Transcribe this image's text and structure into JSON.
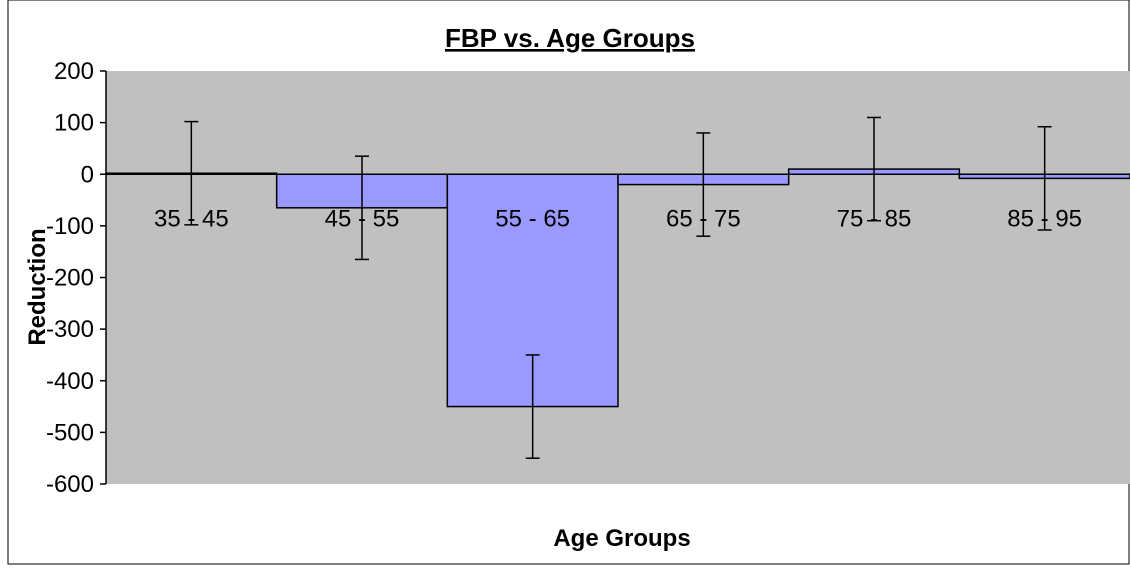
{
  "chart_data": {
    "type": "bar",
    "title": "FBP vs. Age Groups",
    "xlabel": "Age Groups",
    "ylabel": "Reduction",
    "categories": [
      "35 - 45",
      "45 - 55",
      "55 - 65",
      "65 - 75",
      "75 - 85",
      "85 - 95"
    ],
    "values": [
      2,
      -65,
      -450,
      -20,
      10,
      -8
    ],
    "error_bars": [
      100,
      100,
      100,
      100,
      100,
      100
    ],
    "ylim": [
      -600,
      200
    ],
    "yticks": [
      "200",
      "100",
      "0",
      "-100",
      "-200",
      "-300",
      "-400",
      "-500",
      "-600"
    ],
    "grid": false,
    "legend": "none",
    "colors": {
      "bar_fill": "#9999ff",
      "bar_stroke": "#000000",
      "plot_background": "#c0c0c0",
      "axis": "#000000"
    }
  }
}
